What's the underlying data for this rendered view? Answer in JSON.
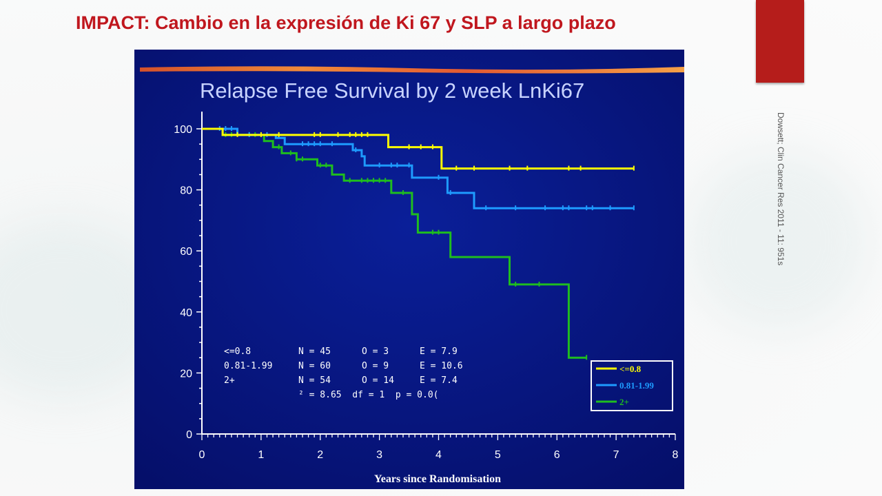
{
  "slide": {
    "title": "IMPACT: Cambio en la expresión de Ki 67 y SLP a largo plazo",
    "citation": "Dowsett; Clin Cancer Res 2011 - 11: 951s"
  },
  "colors": {
    "title": "#c0171e",
    "accent_bar": "#b51d1b",
    "chart_background": "#06127a",
    "axis": "#ffffff",
    "series_le08": "#ffff00",
    "series_081_199": "#1e9bff",
    "series_2plus": "#1fbd1f"
  },
  "chart_data": {
    "type": "line",
    "step": true,
    "title": "Relapse Free Survival by 2 week LnKi67",
    "xlabel": "Years since Randomisation",
    "ylabel": "",
    "xlim": [
      0,
      8
    ],
    "ylim": [
      0,
      100
    ],
    "x_ticks": [
      0,
      1,
      2,
      3,
      4,
      5,
      6,
      7,
      8
    ],
    "y_ticks": [
      0,
      20,
      40,
      60,
      80,
      100
    ],
    "grid": false,
    "legend_position": "bottom-right",
    "series": [
      {
        "name": "<=0.8",
        "color": "#ffff00",
        "points": [
          [
            0,
            100
          ],
          [
            0.35,
            100
          ],
          [
            0.35,
            98
          ],
          [
            3.15,
            98
          ],
          [
            3.15,
            94
          ],
          [
            4.05,
            94
          ],
          [
            4.05,
            87
          ],
          [
            7.3,
            87
          ]
        ],
        "censor_x": [
          0.6,
          1.0,
          1.3,
          1.9,
          2.0,
          2.3,
          2.5,
          2.6,
          2.7,
          2.8,
          3.5,
          3.7,
          3.9,
          4.3,
          4.6,
          5.2,
          5.5,
          6.2,
          6.4,
          7.3
        ]
      },
      {
        "name": "0.81-1.99",
        "color": "#1e9bff",
        "points": [
          [
            0,
            100
          ],
          [
            0.6,
            100
          ],
          [
            0.6,
            98
          ],
          [
            1.25,
            98
          ],
          [
            1.25,
            97
          ],
          [
            1.4,
            97
          ],
          [
            1.4,
            95
          ],
          [
            2.55,
            95
          ],
          [
            2.55,
            93
          ],
          [
            2.7,
            93
          ],
          [
            2.7,
            91
          ],
          [
            2.75,
            91
          ],
          [
            2.75,
            88
          ],
          [
            3.55,
            88
          ],
          [
            3.55,
            84
          ],
          [
            4.15,
            84
          ],
          [
            4.15,
            79
          ],
          [
            4.6,
            79
          ],
          [
            4.6,
            74
          ],
          [
            7.3,
            74
          ]
        ],
        "censor_x": [
          0.3,
          0.4,
          0.5,
          0.8,
          1.1,
          1.7,
          1.8,
          1.9,
          2.0,
          2.2,
          2.6,
          3.0,
          3.2,
          3.3,
          3.5,
          4.0,
          4.2,
          4.8,
          5.3,
          5.8,
          6.1,
          6.2,
          6.5,
          6.6,
          6.9,
          7.3
        ]
      },
      {
        "name": "2+",
        "color": "#1fbd1f",
        "points": [
          [
            0,
            100
          ],
          [
            0.35,
            100
          ],
          [
            0.35,
            98
          ],
          [
            1.05,
            98
          ],
          [
            1.05,
            96
          ],
          [
            1.2,
            96
          ],
          [
            1.2,
            94
          ],
          [
            1.35,
            94
          ],
          [
            1.35,
            92
          ],
          [
            1.6,
            92
          ],
          [
            1.6,
            90
          ],
          [
            1.95,
            90
          ],
          [
            1.95,
            88
          ],
          [
            2.2,
            88
          ],
          [
            2.2,
            85
          ],
          [
            2.4,
            85
          ],
          [
            2.4,
            83
          ],
          [
            3.2,
            83
          ],
          [
            3.2,
            79
          ],
          [
            3.55,
            79
          ],
          [
            3.55,
            72
          ],
          [
            3.65,
            72
          ],
          [
            3.65,
            66
          ],
          [
            4.2,
            66
          ],
          [
            4.2,
            58
          ],
          [
            5.2,
            58
          ],
          [
            5.2,
            49
          ],
          [
            6.2,
            49
          ],
          [
            6.2,
            25
          ],
          [
            6.5,
            25
          ]
        ],
        "censor_x": [
          0.4,
          0.5,
          0.8,
          0.9,
          1.3,
          1.5,
          1.6,
          1.7,
          2.0,
          2.1,
          2.5,
          2.7,
          2.8,
          2.9,
          3.0,
          3.1,
          3.4,
          3.9,
          4.0,
          5.3,
          5.7,
          6.5
        ]
      }
    ],
    "stats_table": [
      {
        "group": "<=0.8",
        "n": "N = 45",
        "o": "O = 3",
        "e": "E = 7.9"
      },
      {
        "group": "0.81-1.99",
        "n": "N = 60",
        "o": "O = 9",
        "e": "E = 10.6"
      },
      {
        "group": "2+",
        "n": "N = 54",
        "o": "O = 14",
        "e": "E = 7.4"
      }
    ],
    "stats_test": "² = 8.65  df = 1  p = 0.0("
  }
}
